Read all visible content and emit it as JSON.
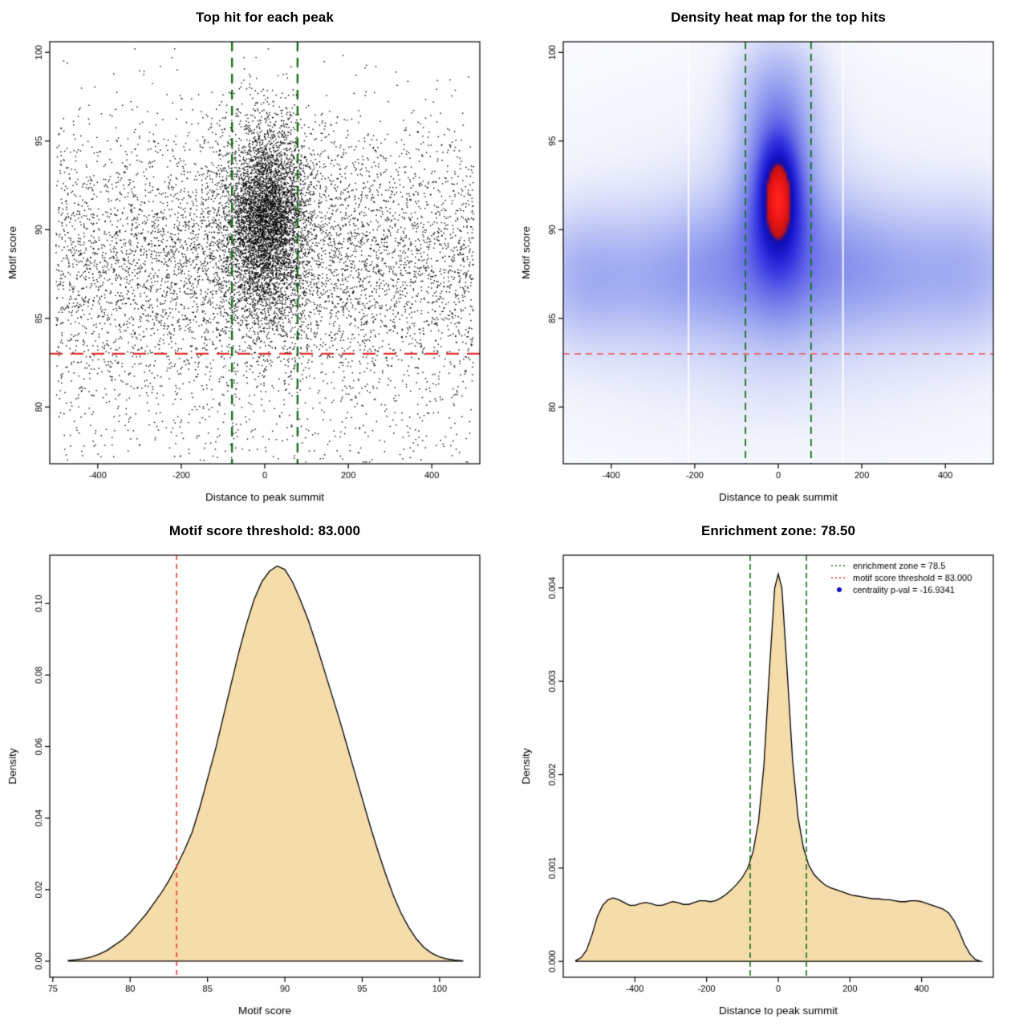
{
  "page": {
    "background": "#ffffff"
  },
  "chart_data": [
    {
      "type": "scatter",
      "title": "Top hit for each peak",
      "xlabel": "Distance to peak summit",
      "ylabel": "Motif score",
      "xlim": [
        -515,
        515
      ],
      "ylim": [
        76.8,
        100.6
      ],
      "xticks": {
        "values": [
          -400,
          -200,
          0,
          200,
          400
        ],
        "labels": [
          "-400",
          "-200",
          "0",
          "200",
          "400"
        ]
      },
      "yticks": {
        "values": [
          80,
          85,
          90,
          95,
          100
        ],
        "labels": [
          "80",
          "85",
          "90",
          "95",
          "100"
        ]
      },
      "point_color": "#000000",
      "hlines": [
        {
          "y": 83,
          "color": "#e03030",
          "width": 2.2,
          "dash": [
            16,
            10
          ]
        }
      ],
      "vlines": [
        {
          "x": -78.5,
          "color": "#1a701a",
          "width": 2.4,
          "dash": [
            12,
            8
          ]
        },
        {
          "x": 78.5,
          "color": "#1a701a",
          "width": 2.4,
          "dash": [
            12,
            8
          ]
        }
      ],
      "synthesis": {
        "seed": 20240607,
        "clip_y": [
          76.9,
          100.2
        ],
        "groups": [
          {
            "n": 5200,
            "x": {
              "dist": "uniform",
              "a": -500,
              "b": 500
            },
            "y": {
              "dist": "normal",
              "mean": 88.2,
              "sd": 3.9
            }
          },
          {
            "n": 4300,
            "x": {
              "dist": "normal",
              "mean": 6,
              "sd": 46
            },
            "y": {
              "dist": "normal",
              "mean": 90.6,
              "sd": 2.7
            }
          },
          {
            "n": 1600,
            "x": {
              "dist": "normal",
              "mean": 0,
              "sd": 140
            },
            "y": {
              "dist": "normal",
              "mean": 89.4,
              "sd": 3.3
            }
          },
          {
            "n": 420,
            "x": {
              "dist": "uniform",
              "a": -500,
              "b": 500
            },
            "y": {
              "dist": "uniform",
              "a": 77,
              "b": 83.5
            }
          }
        ]
      }
    },
    {
      "type": "density-heatmap",
      "title": "Density heat map for the top hits",
      "xlabel": "Distance to peak summit",
      "ylabel": "Motif score",
      "xlim": [
        -515,
        515
      ],
      "ylim": [
        76.8,
        100.6
      ],
      "xticks": {
        "values": [
          -400,
          -200,
          0,
          200,
          400
        ],
        "labels": [
          "-400",
          "-200",
          "0",
          "200",
          "400"
        ]
      },
      "yticks": {
        "values": [
          80,
          85,
          90,
          95,
          100
        ],
        "labels": [
          "80",
          "85",
          "90",
          "95",
          "100"
        ]
      },
      "gamma": 0.8,
      "blobs": [
        [
          0,
          92,
          30,
          2.0,
          1.0
        ],
        [
          0,
          91,
          50,
          3.0,
          0.6
        ],
        [
          0,
          90.5,
          85,
          4.2,
          0.38
        ],
        [
          0,
          95.8,
          55,
          2.6,
          0.3
        ],
        [
          0,
          98.5,
          80,
          2.2,
          0.16
        ],
        [
          0,
          87.5,
          460,
          2.7,
          0.23
        ],
        [
          -150,
          88,
          90,
          2.6,
          0.16
        ],
        [
          150,
          88.3,
          95,
          2.6,
          0.16
        ],
        [
          -320,
          87.2,
          120,
          2.3,
          0.14
        ],
        [
          320,
          87.6,
          130,
          2.4,
          0.14
        ],
        [
          -470,
          87.3,
          70,
          2.5,
          0.16
        ],
        [
          470,
          88,
          80,
          2.8,
          0.14
        ],
        [
          0,
          89,
          480,
          7,
          0.11
        ],
        [
          0,
          82,
          480,
          4,
          0.05
        ]
      ],
      "colormap": [
        [
          0.0,
          "#ffffff"
        ],
        [
          0.06,
          "#f1f3fc"
        ],
        [
          0.16,
          "#ccd2f7"
        ],
        [
          0.3,
          "#9aa5f0"
        ],
        [
          0.45,
          "#6a6fe8"
        ],
        [
          0.58,
          "#3c3ce2"
        ],
        [
          0.7,
          "#1b1bd2"
        ],
        [
          0.8,
          "#0d0dae"
        ],
        [
          0.84,
          "#c01212"
        ],
        [
          0.93,
          "#ea1515"
        ],
        [
          1.0,
          "#ff2020"
        ]
      ],
      "white_gaps": [
        -215,
        155
      ],
      "hlines": [
        {
          "y": 83,
          "color": "#f05050",
          "width": 1.4,
          "dash": [
            8,
            6
          ]
        }
      ],
      "vlines": [
        {
          "x": -78.5,
          "color": "#1a701a",
          "width": 1.8,
          "dash": [
            9,
            6
          ]
        },
        {
          "x": 78.5,
          "color": "#1a701a",
          "width": 1.8,
          "dash": [
            9,
            6
          ]
        }
      ]
    },
    {
      "type": "area",
      "title": "Motif score threshold: 83.000",
      "xlabel": "Motif score",
      "ylabel": "Density",
      "xlim": [
        74.8,
        102.6
      ],
      "ylim": [
        -0.0045,
        0.1135
      ],
      "xticks": {
        "values": [
          75,
          80,
          85,
          90,
          95,
          100
        ],
        "labels": [
          "75",
          "80",
          "85",
          "90",
          "95",
          "100"
        ]
      },
      "yticks": {
        "values": [
          0,
          0.02,
          0.04,
          0.06,
          0.08,
          0.1
        ],
        "labels": [
          "0.00",
          "0.02",
          "0.04",
          "0.06",
          "0.08",
          "0.10"
        ]
      },
      "fill": "#f5dcab",
      "stroke": "#000000",
      "vlines": [
        {
          "x": 83,
          "color": "#e03131",
          "width": 1.5,
          "dash": [
            6,
            5
          ]
        }
      ],
      "curve": {
        "x": [
          76,
          76.5,
          77,
          77.5,
          78,
          78.5,
          79,
          79.5,
          80,
          80.5,
          81,
          81.5,
          82,
          82.5,
          83,
          83.5,
          84,
          84.5,
          85,
          85.5,
          86,
          86.5,
          87,
          87.5,
          88,
          88.5,
          89,
          89.5,
          90,
          90.5,
          91,
          91.5,
          92,
          92.5,
          93,
          93.5,
          94,
          94.5,
          95,
          95.5,
          96,
          96.5,
          97,
          97.5,
          98,
          98.5,
          99,
          99.5,
          100,
          100.5,
          101,
          101.5
        ],
        "y": [
          0.0002,
          0.0004,
          0.0007,
          0.0012,
          0.002,
          0.003,
          0.0045,
          0.006,
          0.008,
          0.0105,
          0.013,
          0.016,
          0.019,
          0.0225,
          0.0265,
          0.031,
          0.036,
          0.043,
          0.051,
          0.059,
          0.068,
          0.077,
          0.086,
          0.094,
          0.101,
          0.106,
          0.109,
          0.1105,
          0.1095,
          0.106,
          0.101,
          0.0955,
          0.089,
          0.082,
          0.075,
          0.068,
          0.0605,
          0.053,
          0.0455,
          0.038,
          0.031,
          0.0245,
          0.0185,
          0.0135,
          0.0095,
          0.0062,
          0.0038,
          0.0022,
          0.0012,
          0.0006,
          0.0003,
          0.0001
        ]
      }
    },
    {
      "type": "area",
      "title": "Enrichment zone: 78.50",
      "xlabel": "Distance to peak summit",
      "ylabel": "Density",
      "xlim": [
        -600,
        600
      ],
      "ylim": [
        -0.00017,
        0.00435
      ],
      "xticks": {
        "values": [
          -400,
          -200,
          0,
          200,
          400
        ],
        "labels": [
          "-400",
          "-200",
          "0",
          "200",
          "400"
        ]
      },
      "yticks": {
        "values": [
          0,
          0.001,
          0.002,
          0.003,
          0.004
        ],
        "labels": [
          "0.000",
          "0.001",
          "0.002",
          "0.003",
          "0.004"
        ]
      },
      "fill": "#f5dcab",
      "stroke": "#000000",
      "vlines": [
        {
          "x": -78.5,
          "color": "#1a701a",
          "width": 1.6,
          "dash": [
            7,
            4
          ]
        },
        {
          "x": 78.5,
          "color": "#1a701a",
          "width": 1.6,
          "dash": [
            7,
            4
          ]
        }
      ],
      "legend": {
        "items": [
          {
            "swatch": "dotted-line",
            "color": "#1a701a",
            "label": "enrichment zone = 78.5"
          },
          {
            "swatch": "dotted-line",
            "color": "#e03131",
            "label": "motif score threshold = 83.000"
          },
          {
            "swatch": "dot",
            "color": "#1111bb",
            "label": "centrality p-val = -16.9341"
          }
        ]
      },
      "curve": {
        "x": [
          -565,
          -550,
          -535,
          -520,
          -505,
          -490,
          -475,
          -460,
          -445,
          -430,
          -415,
          -400,
          -385,
          -370,
          -355,
          -340,
          -325,
          -310,
          -295,
          -280,
          -265,
          -250,
          -235,
          -220,
          -205,
          -190,
          -175,
          -160,
          -145,
          -130,
          -115,
          -100,
          -85,
          -70,
          -55,
          -40,
          -25,
          -10,
          0,
          10,
          25,
          40,
          55,
          70,
          85,
          100,
          115,
          130,
          145,
          160,
          175,
          190,
          205,
          220,
          235,
          250,
          265,
          280,
          295,
          310,
          325,
          340,
          355,
          370,
          385,
          400,
          415,
          430,
          445,
          460,
          475,
          490,
          505,
          520,
          535,
          550,
          565
        ],
        "y": [
          1e-05,
          4e-05,
          0.00012,
          0.00028,
          0.00048,
          0.0006,
          0.00066,
          0.00068,
          0.00066,
          0.00063,
          0.0006,
          0.0006,
          0.00062,
          0.00063,
          0.00062,
          0.0006,
          0.0006,
          0.00062,
          0.00064,
          0.00063,
          0.00061,
          0.00061,
          0.00063,
          0.00065,
          0.00065,
          0.00064,
          0.00065,
          0.00068,
          0.00072,
          0.00077,
          0.00083,
          0.0009,
          0.001,
          0.00118,
          0.0015,
          0.0021,
          0.0031,
          0.004,
          0.00415,
          0.004,
          0.0031,
          0.00215,
          0.00155,
          0.00122,
          0.00103,
          0.00093,
          0.00087,
          0.00082,
          0.00079,
          0.00077,
          0.00075,
          0.00073,
          0.00071,
          0.0007,
          0.00069,
          0.00068,
          0.00067,
          0.00067,
          0.00066,
          0.00066,
          0.00065,
          0.00064,
          0.00064,
          0.00065,
          0.00065,
          0.00064,
          0.00062,
          0.0006,
          0.00058,
          0.00056,
          0.00052,
          0.00044,
          0.00032,
          0.00018,
          8e-05,
          2e-05,
          0.0
        ]
      }
    }
  ]
}
